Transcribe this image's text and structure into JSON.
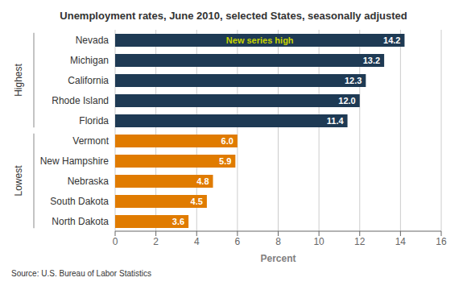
{
  "chart_data": {
    "type": "bar",
    "orientation": "horizontal",
    "title": "Unemployment rates, June 2010, selected States, seasonally adjusted",
    "categories": [
      "Nevada",
      "Michigan",
      "California",
      "Rhode Island",
      "Florida",
      "Vermont",
      "New Hampshire",
      "Nebraska",
      "South Dakota",
      "North Dakota"
    ],
    "values": [
      14.2,
      13.2,
      12.3,
      12.0,
      11.4,
      6.0,
      5.9,
      4.8,
      4.5,
      3.6
    ],
    "value_labels": [
      "14.2",
      "13.2",
      "12.3",
      "12.0",
      "11.4",
      "6.0",
      "5.9",
      "4.8",
      "4.5",
      "3.6"
    ],
    "data_labels": true,
    "colors": [
      "#1e3a54",
      "#1e3a54",
      "#1e3a54",
      "#1e3a54",
      "#1e3a54",
      "#e07b00",
      "#e07b00",
      "#e07b00",
      "#e07b00",
      "#e07b00"
    ],
    "xlabel": "Percent",
    "xlim": [
      0,
      16
    ],
    "xticks": [
      0,
      2,
      4,
      6,
      8,
      10,
      12,
      14,
      16
    ],
    "grid": true,
    "annotations": [
      {
        "text": "New series high",
        "category": "Nevada",
        "color": "#c8d400"
      }
    ],
    "groups": [
      {
        "name": "Highest",
        "categories": [
          "Nevada",
          "Michigan",
          "California",
          "Rhode Island",
          "Florida"
        ]
      },
      {
        "name": "Lowest",
        "categories": [
          "Vermont",
          "New Hampshire",
          "Nebraska",
          "South Dakota",
          "North Dakota"
        ]
      }
    ],
    "source": "Source: U.S. Bureau of Labor Statistics"
  }
}
